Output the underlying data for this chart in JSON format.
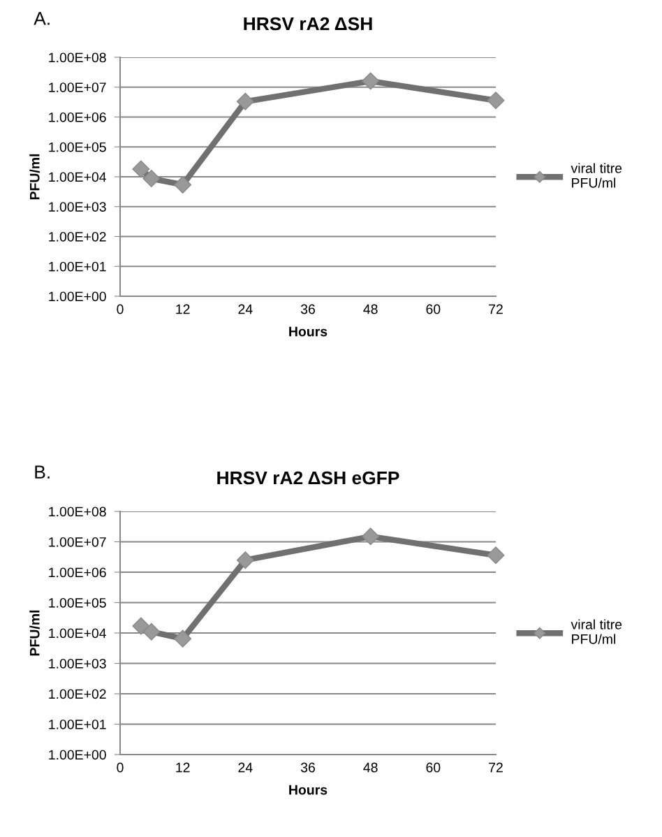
{
  "chart_data": [
    {
      "type": "line",
      "title": "HRSV rA2 ΔSH",
      "annotations": [
        "A."
      ],
      "xlabel": "Hours",
      "ylabel": "PFU/ml",
      "log": "y",
      "xlim": [
        0,
        72
      ],
      "xticks": [
        0,
        12,
        24,
        36,
        48,
        60,
        72
      ],
      "ylim": [
        1,
        100000000
      ],
      "yticks": [
        {
          "value": 1,
          "label": "1.00E+00"
        },
        {
          "value": 10,
          "label": "1.00E+01"
        },
        {
          "value": 100,
          "label": "1.00E+02"
        },
        {
          "value": 1000,
          "label": "1.00E+03"
        },
        {
          "value": 10000,
          "label": "1.00E+04"
        },
        {
          "value": 100000,
          "label": "1.00E+05"
        },
        {
          "value": 1000000,
          "label": "1.00E+06"
        },
        {
          "value": 10000000,
          "label": "1.00E+07"
        },
        {
          "value": 100000000,
          "label": "1.00E+08"
        }
      ],
      "grid": "y",
      "legend": "right",
      "marker": "diamond",
      "line_style": "solid",
      "x": [
        4,
        6,
        12,
        24,
        48,
        72
      ],
      "series": [
        {
          "name": "viral titre PFU/ml",
          "color": "#707070",
          "values": [
            18000,
            8700,
            5400,
            3300000,
            16000000,
            3600000
          ]
        }
      ]
    },
    {
      "type": "line",
      "title": "HRSV rA2 ΔSH eGFP",
      "annotations": [
        "B."
      ],
      "xlabel": "Hours",
      "ylabel": "PFU/ml",
      "log": "y",
      "xlim": [
        0,
        72
      ],
      "xticks": [
        0,
        12,
        24,
        36,
        48,
        60,
        72
      ],
      "ylim": [
        1,
        100000000
      ],
      "yticks": [
        {
          "value": 1,
          "label": "1.00E+00"
        },
        {
          "value": 10,
          "label": "1.00E+01"
        },
        {
          "value": 100,
          "label": "1.00E+02"
        },
        {
          "value": 1000,
          "label": "1.00E+03"
        },
        {
          "value": 10000,
          "label": "1.00E+04"
        },
        {
          "value": 100000,
          "label": "1.00E+05"
        },
        {
          "value": 1000000,
          "label": "1.00E+06"
        },
        {
          "value": 10000000,
          "label": "1.00E+07"
        },
        {
          "value": 100000000,
          "label": "1.00E+08"
        }
      ],
      "grid": "y",
      "legend": "right",
      "marker": "diamond",
      "line_style": "solid",
      "x": [
        4,
        6,
        12,
        24,
        48,
        72
      ],
      "series": [
        {
          "name": "viral titre PFU/ml",
          "color": "#707070",
          "values": [
            17000,
            11000,
            6500,
            2500000,
            15000000,
            3600000
          ]
        }
      ]
    }
  ]
}
